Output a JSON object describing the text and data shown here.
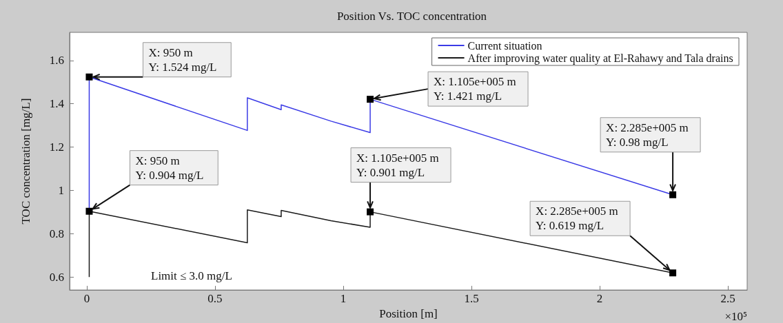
{
  "chart_data": {
    "type": "line",
    "title": "Position Vs. TOC concentration",
    "xlabel": "Position [m]",
    "ylabel": "TOC concentration [mg/L]",
    "xlim": [
      -0.067,
      2.575
    ],
    "xticks": [
      0,
      0.5,
      1,
      1.5,
      2,
      2.5
    ],
    "ylim": [
      0.54,
      1.73
    ],
    "yticks": [
      0.6,
      0.8,
      {
        "value": 1,
        "label": "1"
      },
      1.2,
      1.4,
      1.6
    ],
    "grid": false,
    "legend": "top right",
    "line_style": "solid",
    "series": [
      {
        "name": "Current situation",
        "color": "#3a3ae6",
        "x": [
          0.0095,
          0.0095,
          0.626,
          0.626,
          0.758,
          0.758,
          0.952,
          0.952,
          1.105,
          1.105,
          2.285
        ],
        "values": [
          0.904,
          1.524,
          1.277,
          1.428,
          1.373,
          1.395,
          1.32,
          1.322,
          1.267,
          1.421,
          0.98
        ]
      },
      {
        "name": "After improving water quality at El-Rahawy and Tala drains",
        "color": "#1a1a1a",
        "x": [
          0.0095,
          0.0095,
          0.626,
          0.626,
          0.758,
          0.758,
          0.952,
          0.952,
          1.105,
          1.105,
          2.285
        ],
        "values": [
          0.6,
          0.904,
          0.758,
          0.91,
          0.879,
          0.908,
          0.86,
          0.862,
          0.83,
          0.901,
          0.619
        ]
      }
    ],
    "annotations": [
      {
        "text": "X: 950 m\nY: 1.524 mg/L",
        "x": 0.0095,
        "y": 1.524
      },
      {
        "text": "X: 950 m\nY: 0.904 mg/L",
        "x": 0.0095,
        "y": 0.904
      },
      {
        "text": "X: 1.105e+005 m\nY: 1.421 mg/L",
        "x": 1.105,
        "y": 1.421
      },
      {
        "text": "X: 1.105e+005 m\nY: 0.901 mg/L",
        "x": 1.105,
        "y": 0.901
      },
      {
        "text": "X: 2.285e+005 m\nY: 0.98 mg/L",
        "x": 2.285,
        "y": 0.98
      },
      {
        "text": "X: 2.285e+005 m\nY: 0.619 mg/L",
        "x": 2.285,
        "y": 0.619
      },
      "Limit ≤ 3.0 mg/L",
      "×10⁵"
    ]
  }
}
